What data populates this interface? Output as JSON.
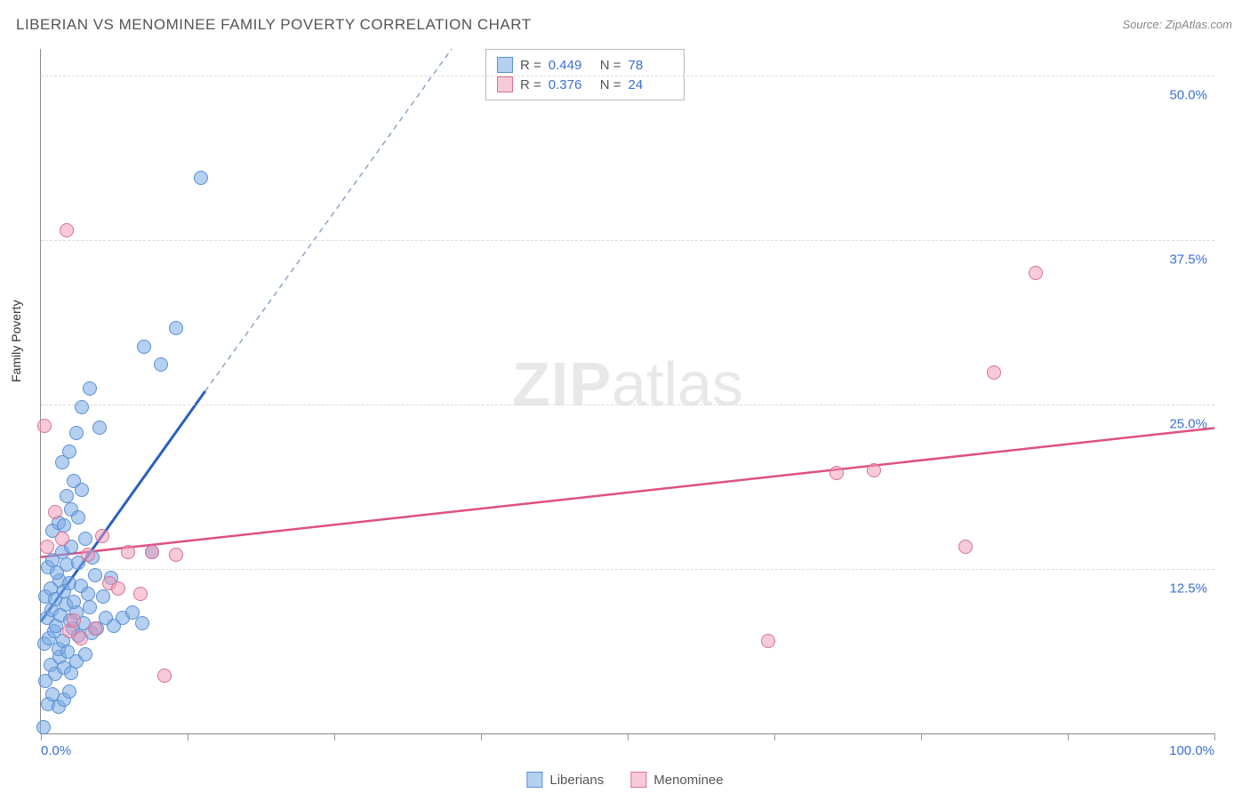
{
  "title": "LIBERIAN VS MENOMINEE FAMILY POVERTY CORRELATION CHART",
  "source": "Source: ZipAtlas.com",
  "ylabel": "Family Poverty",
  "watermark_bold": "ZIP",
  "watermark_rest": "atlas",
  "chart": {
    "type": "scatter",
    "xlim": [
      0,
      100
    ],
    "ylim": [
      0,
      52
    ],
    "x_ticks": [
      0,
      12.5,
      25,
      37.5,
      50,
      62.5,
      75,
      87.5,
      100
    ],
    "x_tick_labels": {
      "0": "0.0%",
      "100": "100.0%"
    },
    "y_gridlines": [
      12.5,
      25,
      37.5,
      50
    ],
    "y_tick_labels": {
      "12.5": "12.5%",
      "25": "25.0%",
      "37.5": "37.5%",
      "50": "50.0%"
    },
    "background_color": "#ffffff",
    "grid_color": "#dddddd",
    "axis_color": "#888888",
    "tick_label_color": "#3b6fd6",
    "series": [
      {
        "name": "Liberians",
        "fill": "rgba(120,170,230,0.55)",
        "stroke": "#5a8fd0",
        "trend_color": "#2b5fc0",
        "trend_width": 3,
        "trend_dash_color": "#8aa5c8",
        "R": "0.449",
        "N": "78",
        "trend_solid": {
          "x1": 0,
          "y1": 8.5,
          "x2": 14,
          "y2": 26
        },
        "trend_dashed": {
          "x1": 14,
          "y1": 26,
          "x2": 35,
          "y2": 52
        },
        "points": [
          [
            0.2,
            0.5
          ],
          [
            0.6,
            2.2
          ],
          [
            1.0,
            3.0
          ],
          [
            1.5,
            2.0
          ],
          [
            2.0,
            2.6
          ],
          [
            2.4,
            3.2
          ],
          [
            0.4,
            4.0
          ],
          [
            0.8,
            5.2
          ],
          [
            1.2,
            4.5
          ],
          [
            1.6,
            5.8
          ],
          [
            2.0,
            5.0
          ],
          [
            2.6,
            4.6
          ],
          [
            3.0,
            5.5
          ],
          [
            0.3,
            6.8
          ],
          [
            0.7,
            7.2
          ],
          [
            1.1,
            7.8
          ],
          [
            1.5,
            6.4
          ],
          [
            1.9,
            7.0
          ],
          [
            2.3,
            6.2
          ],
          [
            2.7,
            8.0
          ],
          [
            3.2,
            7.4
          ],
          [
            3.8,
            6.0
          ],
          [
            4.3,
            7.6
          ],
          [
            0.5,
            8.8
          ],
          [
            0.9,
            9.4
          ],
          [
            1.3,
            8.2
          ],
          [
            1.7,
            9.0
          ],
          [
            2.1,
            9.8
          ],
          [
            2.5,
            8.6
          ],
          [
            3.0,
            9.2
          ],
          [
            3.6,
            8.4
          ],
          [
            4.2,
            9.6
          ],
          [
            4.8,
            8.0
          ],
          [
            5.5,
            8.8
          ],
          [
            6.2,
            8.2
          ],
          [
            0.4,
            10.4
          ],
          [
            0.8,
            11.0
          ],
          [
            1.2,
            10.2
          ],
          [
            1.6,
            11.6
          ],
          [
            2.0,
            10.8
          ],
          [
            2.4,
            11.4
          ],
          [
            2.8,
            10.0
          ],
          [
            3.4,
            11.2
          ],
          [
            4.0,
            10.6
          ],
          [
            4.6,
            12.0
          ],
          [
            5.3,
            10.4
          ],
          [
            6.0,
            11.8
          ],
          [
            7.0,
            8.8
          ],
          [
            7.8,
            9.2
          ],
          [
            8.6,
            8.4
          ],
          [
            9.5,
            13.8
          ],
          [
            0.6,
            12.6
          ],
          [
            1.0,
            13.2
          ],
          [
            1.4,
            12.2
          ],
          [
            1.8,
            13.8
          ],
          [
            2.2,
            12.8
          ],
          [
            2.6,
            14.2
          ],
          [
            3.2,
            13.0
          ],
          [
            3.8,
            14.8
          ],
          [
            4.4,
            13.4
          ],
          [
            1.0,
            15.4
          ],
          [
            1.5,
            16.0
          ],
          [
            2.0,
            15.8
          ],
          [
            2.6,
            17.0
          ],
          [
            3.2,
            16.4
          ],
          [
            2.2,
            18.0
          ],
          [
            2.8,
            19.2
          ],
          [
            3.5,
            18.5
          ],
          [
            1.8,
            20.6
          ],
          [
            2.4,
            21.4
          ],
          [
            3.0,
            22.8
          ],
          [
            5.0,
            23.2
          ],
          [
            3.5,
            24.8
          ],
          [
            4.2,
            26.2
          ],
          [
            10.2,
            28.0
          ],
          [
            8.8,
            29.4
          ],
          [
            11.5,
            30.8
          ],
          [
            13.6,
            42.2
          ]
        ]
      },
      {
        "name": "Menominee",
        "fill": "rgba(240,150,180,0.5)",
        "stroke": "#d97095",
        "trend_color": "#e05080",
        "trend_width": 2.5,
        "R": "0.376",
        "N": "24",
        "trend_line": {
          "x1": 0,
          "y1": 13.4,
          "x2": 100,
          "y2": 23.2
        },
        "points": [
          [
            0.5,
            14.2
          ],
          [
            1.2,
            16.8
          ],
          [
            1.8,
            14.8
          ],
          [
            2.4,
            7.8
          ],
          [
            2.8,
            8.6
          ],
          [
            3.4,
            7.2
          ],
          [
            4.0,
            13.6
          ],
          [
            4.6,
            8.0
          ],
          [
            5.2,
            15.0
          ],
          [
            5.8,
            11.4
          ],
          [
            6.6,
            11.0
          ],
          [
            7.4,
            13.8
          ],
          [
            8.5,
            10.6
          ],
          [
            9.5,
            13.8
          ],
          [
            10.5,
            4.4
          ],
          [
            11.5,
            13.6
          ],
          [
            0.3,
            23.4
          ],
          [
            2.2,
            38.2
          ],
          [
            62.0,
            7.0
          ],
          [
            67.8,
            19.8
          ],
          [
            71.0,
            20.0
          ],
          [
            78.8,
            14.2
          ],
          [
            81.2,
            27.4
          ],
          [
            84.8,
            35.0
          ]
        ]
      }
    ]
  },
  "legend_bottom": [
    {
      "label": "Liberians",
      "fill": "rgba(120,170,230,0.55)",
      "stroke": "#5a8fd0"
    },
    {
      "label": "Menominee",
      "fill": "rgba(240,150,180,0.5)",
      "stroke": "#d97095"
    }
  ]
}
